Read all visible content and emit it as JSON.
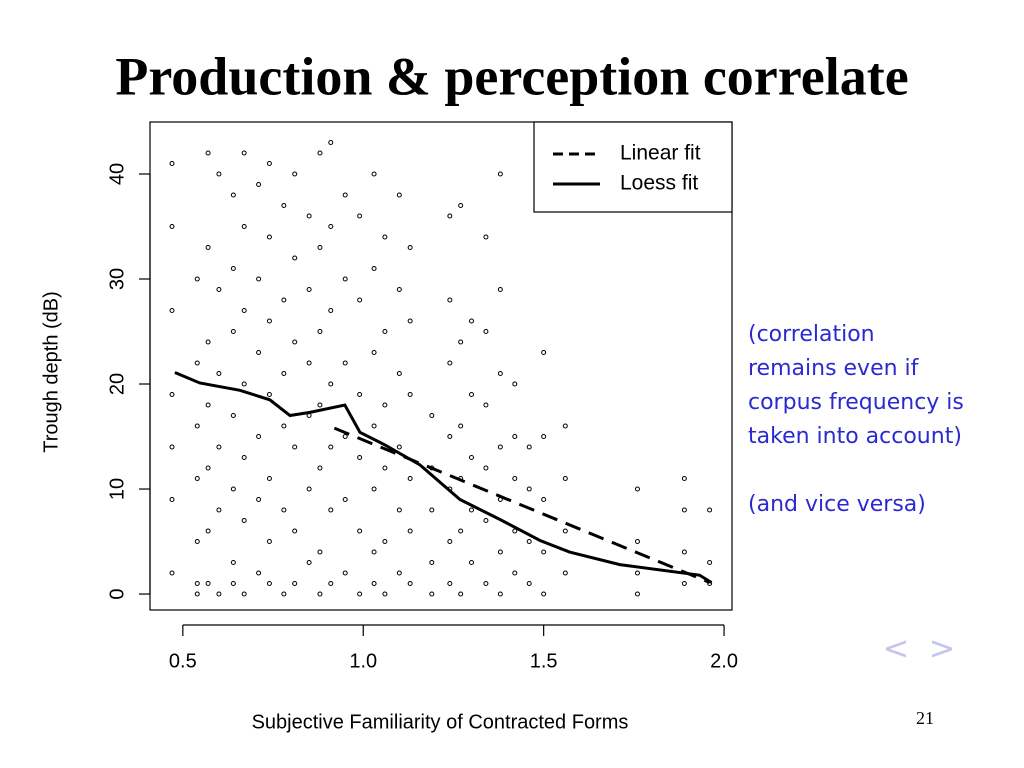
{
  "chart_data": {
    "type": "scatter",
    "title": "Production & perception correlate",
    "x_label": "Subjective Familiarity of Contracted Forms",
    "y_label": "Trough depth (dB)",
    "xlim": [
      0.409,
      2.022
    ],
    "ylim": [
      -1.52,
      44.95
    ],
    "xticks": [
      0.5,
      {
        "value": 1,
        "label": "1.0"
      },
      1.5,
      {
        "value": 2,
        "label": "2.0"
      }
    ],
    "yticks": [
      0,
      10,
      20,
      30,
      40
    ],
    "color": "#000000",
    "x": [
      0.47,
      0.47,
      0.47,
      0.47,
      0.47,
      0.47,
      0.47,
      0.54,
      0.54,
      0.54,
      0.54,
      0.54,
      0.54,
      0.54,
      0.57,
      0.57,
      0.57,
      0.57,
      0.57,
      0.57,
      0.57,
      0.6,
      0.6,
      0.6,
      0.6,
      0.6,
      0.6,
      0.64,
      0.64,
      0.64,
      0.64,
      0.64,
      0.64,
      0.64,
      0.67,
      0.67,
      0.67,
      0.67,
      0.67,
      0.67,
      0.67,
      0.71,
      0.71,
      0.71,
      0.71,
      0.71,
      0.71,
      0.74,
      0.74,
      0.74,
      0.74,
      0.74,
      0.74,
      0.74,
      0.78,
      0.78,
      0.78,
      0.78,
      0.78,
      0.78,
      0.81,
      0.81,
      0.81,
      0.81,
      0.81,
      0.81,
      0.85,
      0.85,
      0.85,
      0.85,
      0.85,
      0.85,
      0.88,
      0.88,
      0.88,
      0.88,
      0.88,
      0.88,
      0.88,
      0.91,
      0.91,
      0.91,
      0.91,
      0.91,
      0.91,
      0.91,
      0.95,
      0.95,
      0.95,
      0.95,
      0.95,
      0.95,
      0.99,
      0.99,
      0.99,
      0.99,
      0.99,
      0.99,
      1.03,
      1.03,
      1.03,
      1.03,
      1.03,
      1.03,
      1.03,
      1.06,
      1.06,
      1.06,
      1.06,
      1.06,
      1.06,
      1.1,
      1.1,
      1.1,
      1.1,
      1.1,
      1.1,
      1.13,
      1.13,
      1.13,
      1.13,
      1.13,
      1.13,
      1.19,
      1.19,
      1.19,
      1.19,
      1.19,
      1.24,
      1.24,
      1.24,
      1.24,
      1.24,
      1.24,
      1.24,
      1.27,
      1.27,
      1.27,
      1.27,
      1.27,
      1.27,
      1.3,
      1.3,
      1.3,
      1.3,
      1.3,
      1.34,
      1.34,
      1.34,
      1.34,
      1.34,
      1.34,
      1.38,
      1.38,
      1.38,
      1.38,
      1.38,
      1.38,
      1.38,
      1.42,
      1.42,
      1.42,
      1.42,
      1.42,
      1.46,
      1.46,
      1.46,
      1.46,
      1.5,
      1.5,
      1.5,
      1.5,
      1.5,
      1.56,
      1.56,
      1.56,
      1.56,
      1.76,
      1.76,
      1.76,
      1.76,
      1.89,
      1.89,
      1.89,
      1.89,
      1.96,
      1.96,
      1.96
    ],
    "values": [
      41,
      35,
      27,
      19,
      14,
      9,
      2,
      30,
      22,
      16,
      11,
      5,
      1,
      0,
      42,
      33,
      24,
      18,
      12,
      6,
      1,
      40,
      29,
      21,
      14,
      8,
      0,
      38,
      31,
      25,
      17,
      10,
      3,
      1,
      42,
      35,
      27,
      20,
      13,
      7,
      0,
      39,
      30,
      23,
      15,
      9,
      2,
      41,
      34,
      26,
      19,
      11,
      5,
      1,
      37,
      28,
      21,
      16,
      8,
      0,
      40,
      32,
      24,
      14,
      6,
      1,
      36,
      29,
      22,
      17,
      10,
      3,
      42,
      33,
      25,
      18,
      12,
      4,
      0,
      43,
      35,
      27,
      20,
      14,
      8,
      1,
      38,
      30,
      22,
      15,
      9,
      2,
      36,
      28,
      19,
      13,
      6,
      0,
      40,
      31,
      23,
      16,
      10,
      4,
      1,
      34,
      25,
      18,
      12,
      5,
      0,
      38,
      29,
      21,
      14,
      8,
      2,
      33,
      26,
      19,
      11,
      6,
      1,
      17,
      12,
      8,
      3,
      0,
      36,
      28,
      22,
      15,
      10,
      5,
      1,
      37,
      24,
      16,
      11,
      6,
      0,
      26,
      19,
      13,
      8,
      3,
      34,
      25,
      18,
      12,
      7,
      1,
      40,
      29,
      21,
      14,
      9,
      4,
      0,
      20,
      15,
      11,
      6,
      2,
      14,
      10,
      5,
      1,
      23,
      15,
      9,
      4,
      0,
      16,
      11,
      6,
      2,
      10,
      5,
      2,
      0,
      11,
      8,
      4,
      1,
      8,
      3,
      1
    ],
    "series": [
      {
        "name": "Linear fit",
        "color": "#000000",
        "style": "dashed",
        "x": [
          0.92,
          1.96
        ],
        "values": [
          15.8,
          1.1
        ]
      },
      {
        "name": "Loess fit",
        "color": "#000000",
        "style": "solid",
        "x": [
          0.478,
          0.547,
          0.658,
          0.741,
          0.797,
          0.852,
          0.949,
          0.991,
          1.06,
          1.157,
          1.268,
          1.379,
          1.49,
          1.572,
          1.711,
          1.932,
          1.965
        ],
        "values": [
          21.1,
          20.1,
          19.4,
          18.5,
          17.0,
          17.3,
          18.0,
          15.4,
          14.2,
          12.3,
          9.0,
          7.1,
          5.1,
          4.0,
          2.8,
          1.8,
          1.1
        ]
      }
    ],
    "legend": "top-right",
    "annotations": [
      [
        "(correlation",
        "remains even if",
        "corpus frequency is",
        "taken into account)"
      ],
      [
        "(and vice versa)"
      ]
    ]
  },
  "slide": {
    "number": "21",
    "prev": "<",
    "next": ">"
  }
}
